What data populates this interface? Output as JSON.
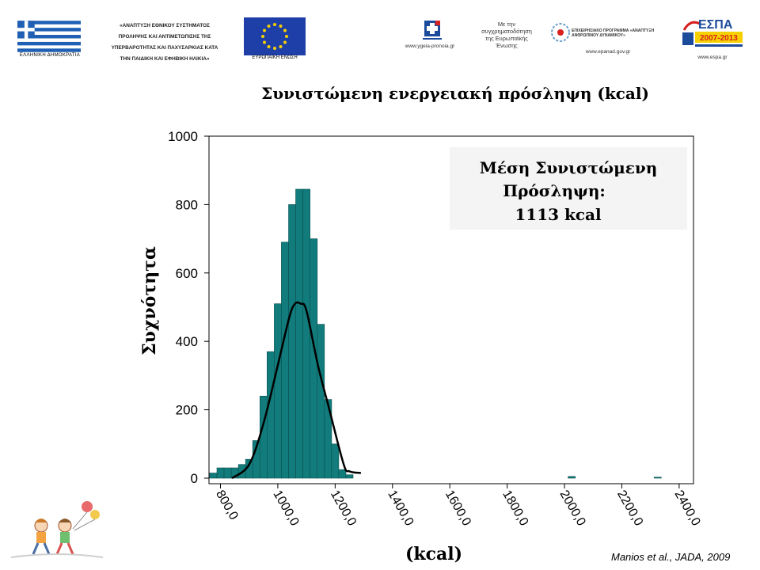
{
  "header": {
    "flag_caption": "ΕΛΛΗΝΙΚΗ ΔΗΜΟΚΡΑΤΙΑ",
    "program_lines": [
      "«ΑΝΑΠΤΥΞΗ ΕΘΝΙΚΟΥ ΣΥΣΤΗΜΑΤΟΣ",
      "ΠΡΟΛΗΨΗΣ ΚΑΙ ΑΝΤΙΜΕΤΩΠΙΣΗΣ ΤΗΣ",
      "ΥΠΕΡΒΑΡΟΤΗΤΑΣ ΚΑΙ ΠΑΧΥΣΑΡΚΙΑΣ ΚΑΤΑ",
      "ΤΗΝ ΠΑΙΔΙΚΗ ΚΑΙ ΕΦΗΒΙΚΗ ΗΛΙΚΙΑ»"
    ],
    "eu_caption": "ΕΥΡΩΠΑΪΚΗ ΕΝΩΣΗ",
    "ygeia_url": "www.ygeia-pronoia.gr",
    "cofin_lines": [
      "Με την",
      "συγχρηματοδότηση",
      "της Ευρωπαϊκής",
      "Ένωσης"
    ],
    "epaned_title": "ΕΠΙΧΕΙΡΗΣΙΑΚΟ ΠΡΟΓΡΑΜΜΑ «ΑΝΑΠΤΥΞΗ ΑΝΘΡΩΠΙΝΟΥ ΔΥΝΑΜΙΚΟΥ»",
    "epaned_url": "www.epanad.gov.gr",
    "espa_title": "ΕΣΠΑ",
    "espa_years": "2007-2013",
    "espa_url": "www.espa.gr"
  },
  "colors": {
    "bar_fill": "#127b7b",
    "bar_edge": "#0b4f4f",
    "curve": "#000000",
    "flag_blue": "#1f5fb4",
    "eu_blue": "#1f3fa8",
    "eu_star": "#f6d000",
    "espa_red": "#d82020",
    "espa_blue": "#1d4b9b"
  },
  "chart_data": {
    "type": "bar",
    "title": "Συνιστώμενη ενεργειακή πρόσληψη (kcal)",
    "xlabel": "(kcal)",
    "ylabel": "Συχνότητα",
    "xlim": [
      760,
      2450
    ],
    "ylim": [
      0,
      1000
    ],
    "x_ticks": [
      "800,0",
      "1000,0",
      "1200,0",
      "1400,0",
      "1600,0",
      "1800,0",
      "2000,0",
      "2200,0",
      "2400,0"
    ],
    "y_ticks": [
      "0",
      "200",
      "400",
      "600",
      "800",
      "1000"
    ],
    "bin_width": 25,
    "bins": [
      {
        "x": 775,
        "y": 15
      },
      {
        "x": 800,
        "y": 30
      },
      {
        "x": 825,
        "y": 30
      },
      {
        "x": 850,
        "y": 30
      },
      {
        "x": 875,
        "y": 40
      },
      {
        "x": 900,
        "y": 55
      },
      {
        "x": 925,
        "y": 110
      },
      {
        "x": 950,
        "y": 240
      },
      {
        "x": 975,
        "y": 370
      },
      {
        "x": 1000,
        "y": 510
      },
      {
        "x": 1025,
        "y": 690
      },
      {
        "x": 1050,
        "y": 800
      },
      {
        "x": 1075,
        "y": 845
      },
      {
        "x": 1100,
        "y": 845
      },
      {
        "x": 1125,
        "y": 700
      },
      {
        "x": 1150,
        "y": 450
      },
      {
        "x": 1175,
        "y": 230
      },
      {
        "x": 1200,
        "y": 100
      },
      {
        "x": 1225,
        "y": 25
      },
      {
        "x": 1250,
        "y": 10
      },
      {
        "x": 2025,
        "y": 5
      },
      {
        "x": 2325,
        "y": 3
      }
    ],
    "curve": [
      {
        "x": 840,
        "y": 0
      },
      {
        "x": 900,
        "y": 40
      },
      {
        "x": 950,
        "y": 160
      },
      {
        "x": 1000,
        "y": 330
      },
      {
        "x": 1040,
        "y": 470
      },
      {
        "x": 1060,
        "y": 510
      },
      {
        "x": 1080,
        "y": 510
      },
      {
        "x": 1100,
        "y": 490
      },
      {
        "x": 1140,
        "y": 330
      },
      {
        "x": 1180,
        "y": 200
      },
      {
        "x": 1230,
        "y": 40
      },
      {
        "x": 1250,
        "y": 20
      },
      {
        "x": 1290,
        "y": 15
      }
    ],
    "annotation_lines": [
      "Μέση Συνιστώμενη",
      "Πρόσληψη:",
      "1113 kcal"
    ]
  },
  "citation": "Manios et al., JADA, 2009"
}
